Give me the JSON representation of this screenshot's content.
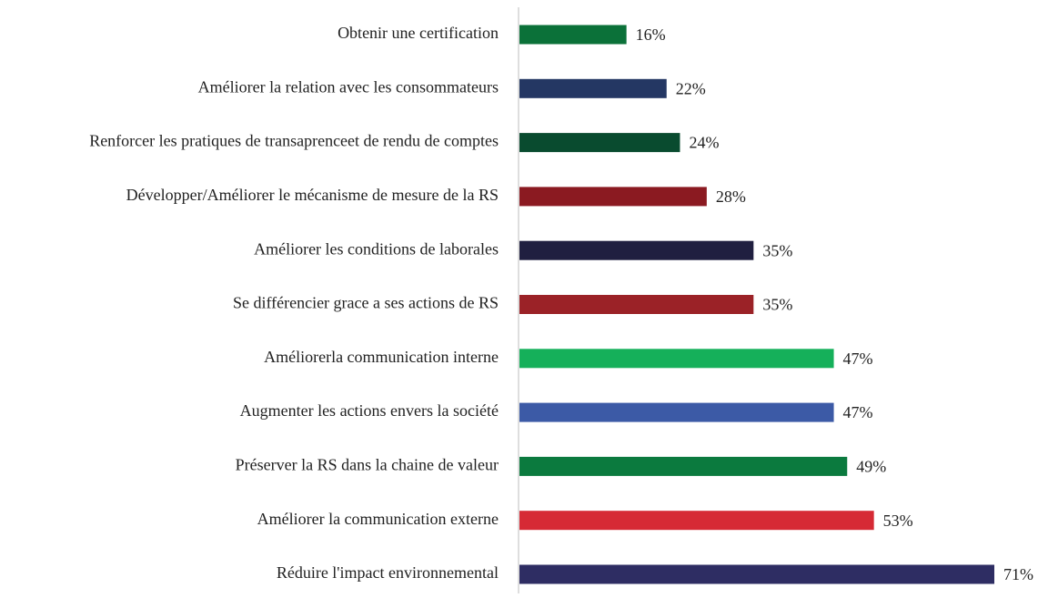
{
  "chart_data": {
    "type": "bar",
    "orientation": "horizontal",
    "categories": [
      "Obtenir une certification",
      "Améliorer la relation avec les consommateurs",
      "Renforcer les pratiques de transaprenceet de rendu de comptes",
      "Développer/Améliorer le mécanisme de mesure de la RS",
      "Améliorer les conditions de laborales",
      "Se différencier grace a ses actions de RS",
      "Améliorerla communication interne",
      "Augmenter les actions envers la société",
      "Préserver la RS dans la chaine de valeur",
      "Améliorer la communication externe",
      "Réduire l'impact environnemental"
    ],
    "values": [
      16,
      22,
      24,
      28,
      35,
      35,
      47,
      47,
      49,
      53,
      71
    ],
    "value_labels": [
      "16%",
      "22%",
      "24%",
      "28%",
      "35%",
      "35%",
      "47%",
      "47%",
      "49%",
      "53%",
      "71%"
    ],
    "colors": [
      "#0b7139",
      "#243763",
      "#094b2f",
      "#8b1a21",
      "#201f40",
      "#9b2227",
      "#15b05a",
      "#3c5aa6",
      "#0b7a3e",
      "#d62a35",
      "#2e2d63"
    ]
  }
}
